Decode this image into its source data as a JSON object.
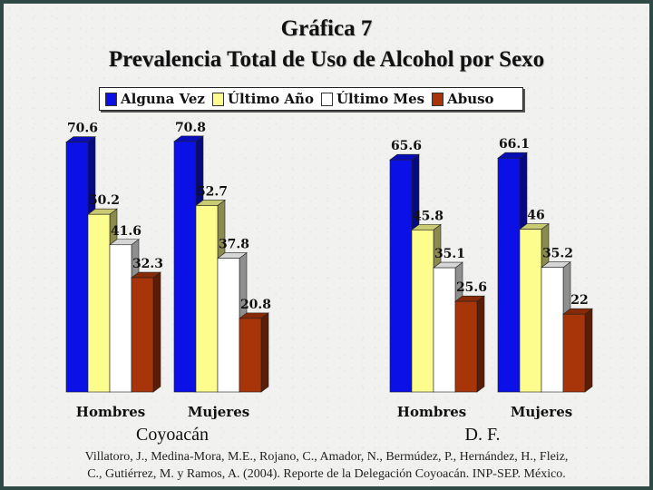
{
  "slide": {
    "title": "Gráfica 7",
    "subtitle": "Prevalencia Total de Uso de Alcohol por Sexo",
    "citation_line1": "Villatoro, J., Medina-Mora, M.E., Rojano, C., Amador, N., Bermúdez, P., Hernández, H., Fleiz,",
    "citation_line2": "C., Gutiérrez, M. y Ramos, A. (2004). Reporte de la Delegación Coyoacán. INP-SEP. México."
  },
  "chart_data": {
    "type": "bar",
    "title": "Prevalencia Total de Uso de Alcohol por Sexo",
    "legend_position": "top",
    "groups": [
      {
        "name": "Coyoacán",
        "categories": [
          "Hombres",
          "Mujeres"
        ]
      },
      {
        "name": "D. F.",
        "categories": [
          "Hombres",
          "Mujeres"
        ]
      }
    ],
    "series": [
      {
        "name": "Alguna Vez",
        "color": "#0a10e6",
        "values": [
          70.6,
          70.8,
          65.6,
          66.1
        ]
      },
      {
        "name": "Último Año",
        "color": "#fdfd8e",
        "values": [
          50.2,
          52.7,
          45.8,
          46
        ]
      },
      {
        "name": "Último Mes",
        "color": "#ffffff",
        "values": [
          41.6,
          37.8,
          35.1,
          35.2
        ]
      },
      {
        "name": "Abuso",
        "color": "#a8340a",
        "values": [
          32.3,
          20.8,
          25.6,
          22
        ]
      }
    ],
    "ylim": [
      0,
      80
    ],
    "grid": false
  }
}
